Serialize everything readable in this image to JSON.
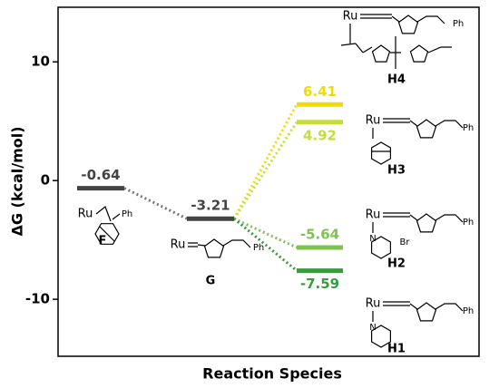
{
  "chart_data": {
    "type": "energy_diagram",
    "y_label": "ΔG (kcal/mol)",
    "x_label": "Reaction Species",
    "categories": [
      "F",
      "G",
      "H4",
      "H3",
      "H2",
      "H1"
    ],
    "values": [
      -0.64,
      -3.21,
      6.41,
      4.92,
      -5.64,
      -7.59
    ],
    "colors": [
      "#444444",
      "#444444",
      "#f0dc00",
      "#c6dc3a",
      "#7cc44e",
      "#3a9a3e"
    ],
    "ylim": [
      -14.8,
      14.6
    ],
    "yticks": [
      -10,
      0,
      10
    ],
    "structure_texts": {
      "ru": "Ru",
      "ph": "Ph",
      "br": "Br",
      "n": "N"
    }
  }
}
